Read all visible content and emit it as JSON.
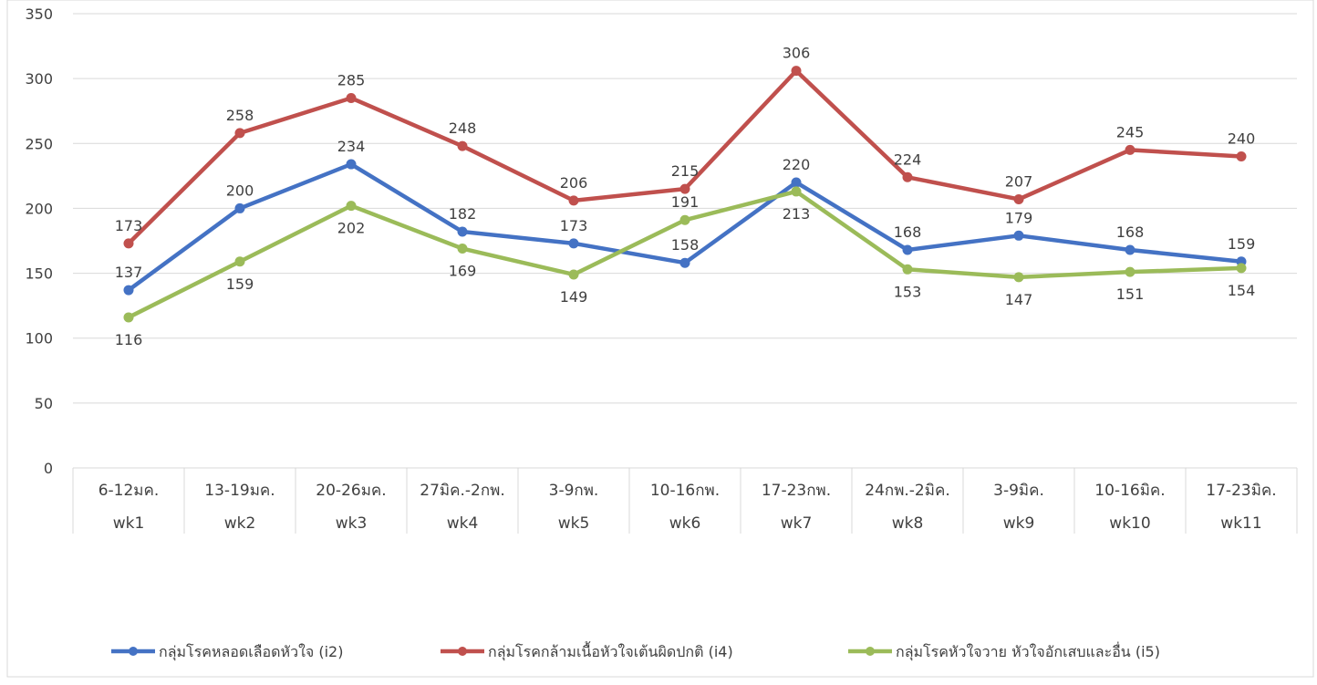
{
  "chart_data": {
    "type": "line",
    "title": "",
    "xlabel": "",
    "ylabel": "",
    "ylim": [
      0,
      350
    ],
    "yticks": [
      0,
      50,
      100,
      150,
      200,
      250,
      300,
      350
    ],
    "grid": true,
    "legend_position": "bottom",
    "categories": [
      {
        "range": "6-12มค.",
        "week": "wk1"
      },
      {
        "range": "13-19มค.",
        "week": "wk2"
      },
      {
        "range": "20-26มค.",
        "week": "wk3"
      },
      {
        "range": "27มิค.-2กพ.",
        "week": "wk4"
      },
      {
        "range": "3-9กพ.",
        "week": "wk5"
      },
      {
        "range": "10-16กพ.",
        "week": "wk6"
      },
      {
        "range": "17-23กพ.",
        "week": "wk7"
      },
      {
        "range": "24กพ.-2มิค.",
        "week": "wk8"
      },
      {
        "range": "3-9มิค.",
        "week": "wk9"
      },
      {
        "range": "10-16มิค.",
        "week": "wk10"
      },
      {
        "range": "17-23มิค.",
        "week": "wk11"
      }
    ],
    "series": [
      {
        "name": "กลุ่มโรคหลอดเลือดหัวใจ (i2)",
        "color": "#4472C4",
        "values": [
          137,
          200,
          234,
          182,
          173,
          158,
          220,
          168,
          179,
          168,
          159
        ],
        "label_placement": [
          "above",
          "above",
          "above",
          "above",
          "above",
          "above",
          "above",
          "above",
          "above",
          "above",
          "above"
        ]
      },
      {
        "name": "กลุ่มโรคกล้ามเนื้อหัวใจเต้นผิดปกติ (i4)",
        "color": "#C0504D",
        "values": [
          173,
          258,
          285,
          248,
          206,
          215,
          306,
          224,
          207,
          245,
          240
        ],
        "label_placement": [
          "above",
          "above",
          "above",
          "above",
          "above",
          "above",
          "above",
          "above",
          "above",
          "above",
          "above"
        ]
      },
      {
        "name": "กลุ่มโรคหัวใจวาย หัวใจอักเสบและอื่น (i5)",
        "color": "#9BBB59",
        "values": [
          116,
          159,
          202,
          169,
          149,
          191,
          213,
          153,
          147,
          151,
          154
        ],
        "label_placement": [
          "below",
          "below",
          "below",
          "below",
          "below",
          "above",
          "below",
          "below",
          "below",
          "below",
          "below"
        ]
      }
    ]
  }
}
